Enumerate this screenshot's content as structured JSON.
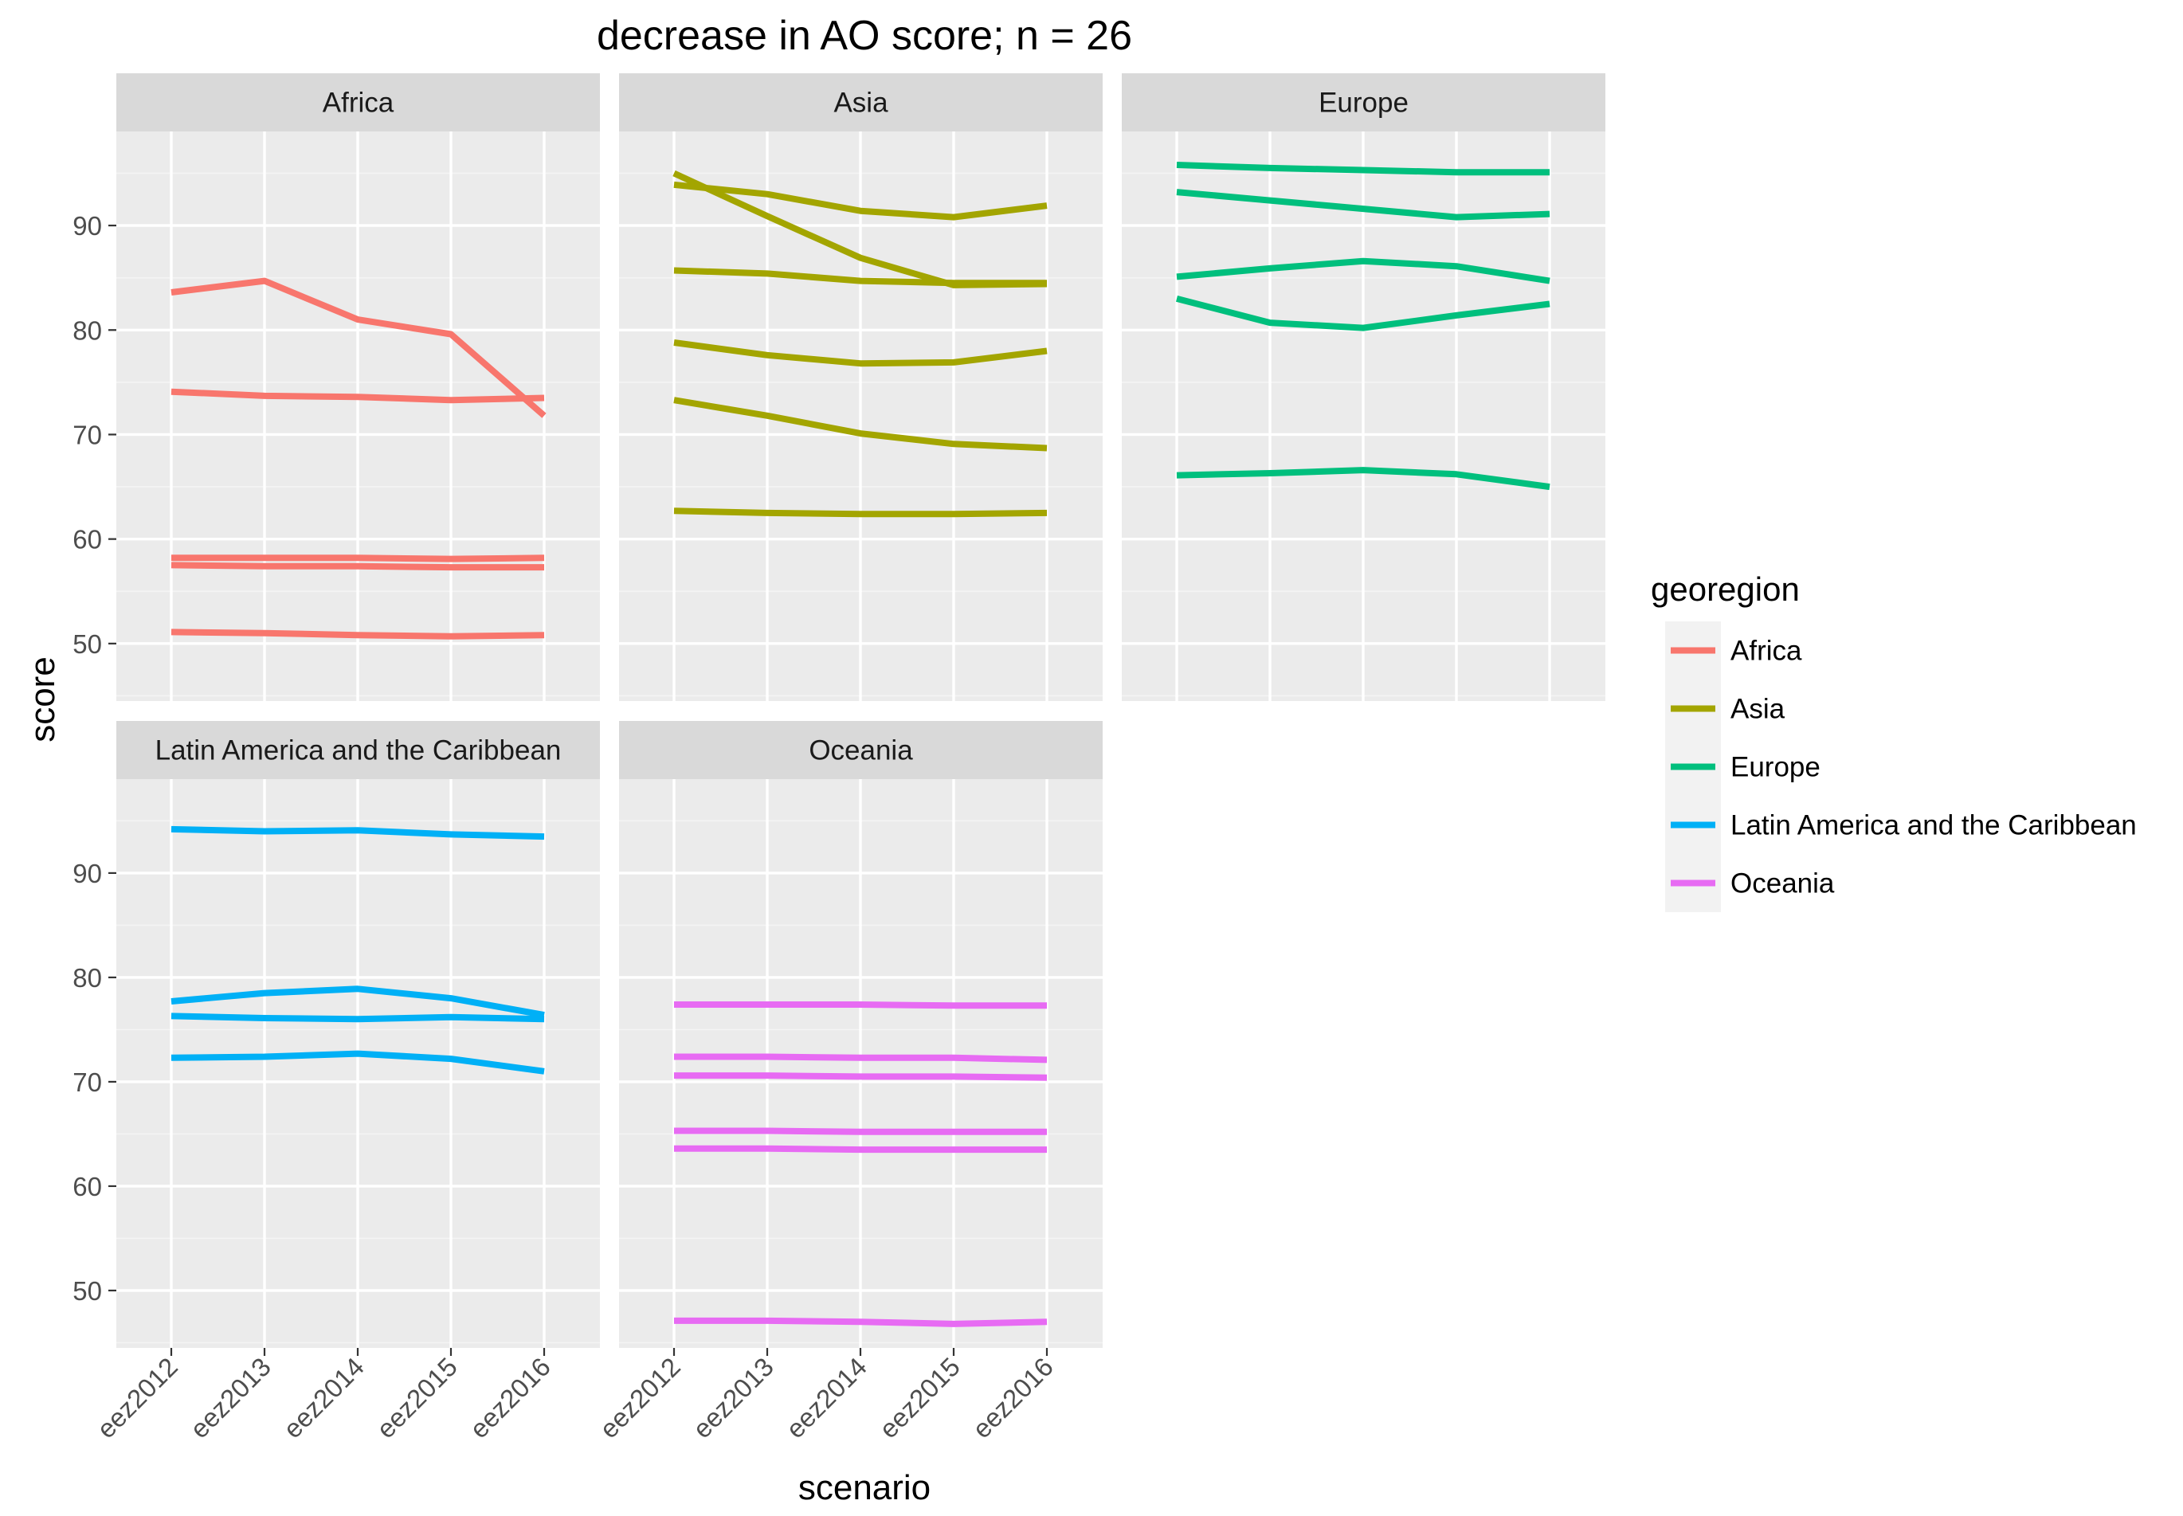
{
  "chart_data": {
    "type": "line",
    "title": "decrease in AO score; n = 26",
    "xlabel": "scenario",
    "ylabel": "score",
    "categories": [
      "eez2012",
      "eez2013",
      "eez2014",
      "eez2015",
      "eez2016"
    ],
    "ylim": [
      44.5,
      99
    ],
    "y_ticks": [
      50,
      60,
      70,
      80,
      90
    ],
    "grid": true,
    "legend": {
      "title": "georegion",
      "placement": "right",
      "entries": [
        {
          "label": "Africa",
          "color": "#F8766D"
        },
        {
          "label": "Asia",
          "color": "#A3A500"
        },
        {
          "label": "Europe",
          "color": "#00BF7D"
        },
        {
          "label": "Latin America and the Caribbean",
          "color": "#00B0F6"
        },
        {
          "label": "Oceania",
          "color": "#E76BF3"
        }
      ]
    },
    "facets": [
      {
        "label": "Africa",
        "color": "#F8766D",
        "series": [
          {
            "values": [
              83.6,
              84.7,
              81.0,
              79.6,
              71.8
            ]
          },
          {
            "values": [
              74.1,
              73.7,
              73.6,
              73.3,
              73.5
            ]
          },
          {
            "values": [
              58.2,
              58.2,
              58.2,
              58.1,
              58.2
            ]
          },
          {
            "values": [
              57.5,
              57.4,
              57.4,
              57.3,
              57.3
            ]
          },
          {
            "values": [
              51.1,
              51.0,
              50.8,
              50.7,
              50.8
            ]
          }
        ]
      },
      {
        "label": "Asia",
        "color": "#A3A500",
        "series": [
          {
            "values": [
              95.0,
              90.9,
              86.9,
              84.3,
              84.4
            ]
          },
          {
            "values": [
              93.9,
              93.0,
              91.4,
              90.8,
              91.9
            ]
          },
          {
            "values": [
              85.7,
              85.4,
              84.7,
              84.5,
              84.5
            ]
          },
          {
            "values": [
              78.8,
              77.6,
              76.8,
              76.9,
              78.0
            ]
          },
          {
            "values": [
              73.3,
              71.8,
              70.1,
              69.1,
              68.7
            ]
          },
          {
            "values": [
              62.7,
              62.5,
              62.4,
              62.4,
              62.5
            ]
          }
        ]
      },
      {
        "label": "Europe",
        "color": "#00BF7D",
        "series": [
          {
            "values": [
              95.8,
              95.5,
              95.3,
              95.1,
              95.1
            ]
          },
          {
            "values": [
              93.2,
              92.4,
              91.6,
              90.8,
              91.1
            ]
          },
          {
            "values": [
              85.1,
              85.9,
              86.6,
              86.1,
              84.7
            ]
          },
          {
            "values": [
              83.0,
              80.7,
              80.2,
              81.4,
              82.5
            ]
          },
          {
            "values": [
              66.1,
              66.3,
              66.6,
              66.2,
              65.0
            ]
          }
        ]
      },
      {
        "label": "Latin America and the Caribbean",
        "color": "#00B0F6",
        "series": [
          {
            "values": [
              94.2,
              94.0,
              94.1,
              93.7,
              93.5
            ]
          },
          {
            "values": [
              77.7,
              78.5,
              78.9,
              78.0,
              76.4
            ]
          },
          {
            "values": [
              76.3,
              76.1,
              76.0,
              76.2,
              76.0
            ]
          },
          {
            "values": [
              72.3,
              72.4,
              72.7,
              72.2,
              71.0
            ]
          }
        ]
      },
      {
        "label": "Oceania",
        "color": "#E76BF3",
        "series": [
          {
            "values": [
              77.4,
              77.4,
              77.4,
              77.3,
              77.3
            ]
          },
          {
            "values": [
              72.4,
              72.4,
              72.3,
              72.3,
              72.1
            ]
          },
          {
            "values": [
              70.6,
              70.6,
              70.5,
              70.5,
              70.4
            ]
          },
          {
            "values": [
              65.3,
              65.3,
              65.2,
              65.2,
              65.2
            ]
          },
          {
            "values": [
              63.6,
              63.6,
              63.5,
              63.5,
              63.5
            ]
          },
          {
            "values": [
              47.1,
              47.1,
              47.0,
              46.8,
              47.0
            ]
          }
        ]
      }
    ]
  }
}
